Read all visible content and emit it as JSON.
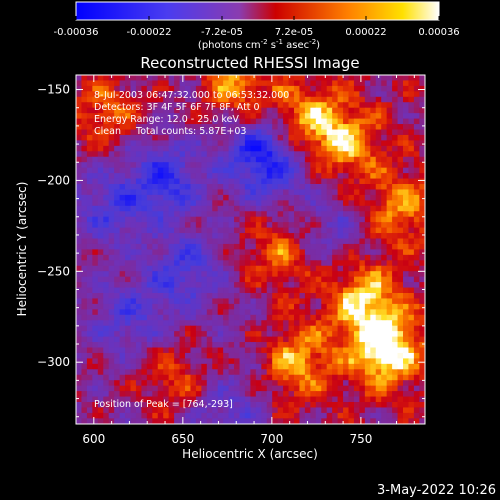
{
  "colorbar": {
    "tick_labels": [
      "-0.00036",
      "-0.00022",
      "-7.2e-05",
      "7.2e-05",
      "0.00022",
      "0.00036"
    ],
    "unit_main": "(photons cm",
    "unit_exp1": "-2",
    "unit_mid": " s",
    "unit_exp2": "-1",
    "unit_end": " asec",
    "unit_exp3": "-2",
    "unit_close": ")"
  },
  "chart_data": {
    "type": "heatmap",
    "title": "Reconstructed RHESSI Image",
    "xlabel": "Heliocentric X (arcsec)",
    "ylabel": "Heliocentric Y (arcsec)",
    "xlim": [
      590,
      786
    ],
    "ylim": [
      -334,
      -142
    ],
    "x_ticks": [
      600,
      650,
      700,
      750
    ],
    "y_ticks": [
      -150,
      -200,
      -250,
      -300
    ],
    "x_tick_labels": [
      "600",
      "650",
      "700",
      "750"
    ],
    "y_tick_labels": [
      "−150",
      "−200",
      "−250",
      "−300"
    ],
    "color_range": [
      -0.00036,
      0.00036
    ],
    "colormap": [
      "#0000ff",
      "#7a3cd0",
      "#cc0000",
      "#ff8000",
      "#ffffff"
    ],
    "annotations": [
      "8-Jul-2003 06:47:32.000 to 06:53:32.000",
      "Detectors: 3F 4F 5F 6F 7F 8F, Att 0",
      "Energy Range: 12.0 - 25.0 keV",
      "Clean     Total counts: 5.87E+03"
    ],
    "peak_label": "Position of Peak = [764,-293]",
    "peak": [
      764,
      -293
    ],
    "bright_regions": [
      {
        "x": 764,
        "y": -293,
        "value": 0.00036
      },
      {
        "x": 752,
        "y": -266,
        "value": 0.00026
      },
      {
        "x": 742,
        "y": -180,
        "value": 0.00022
      },
      {
        "x": 722,
        "y": -166,
        "value": 0.0002
      },
      {
        "x": 680,
        "y": -148,
        "value": 0.00024
      },
      {
        "x": 606,
        "y": -162,
        "value": 0.0002
      },
      {
        "x": 715,
        "y": -300,
        "value": 0.00022
      },
      {
        "x": 700,
        "y": -240,
        "value": 0.00016
      },
      {
        "x": 772,
        "y": -215,
        "value": 0.0002
      },
      {
        "x": 645,
        "y": -310,
        "value": 0.00016
      }
    ]
  },
  "footer_timestamp": "3-May-2022 10:26"
}
